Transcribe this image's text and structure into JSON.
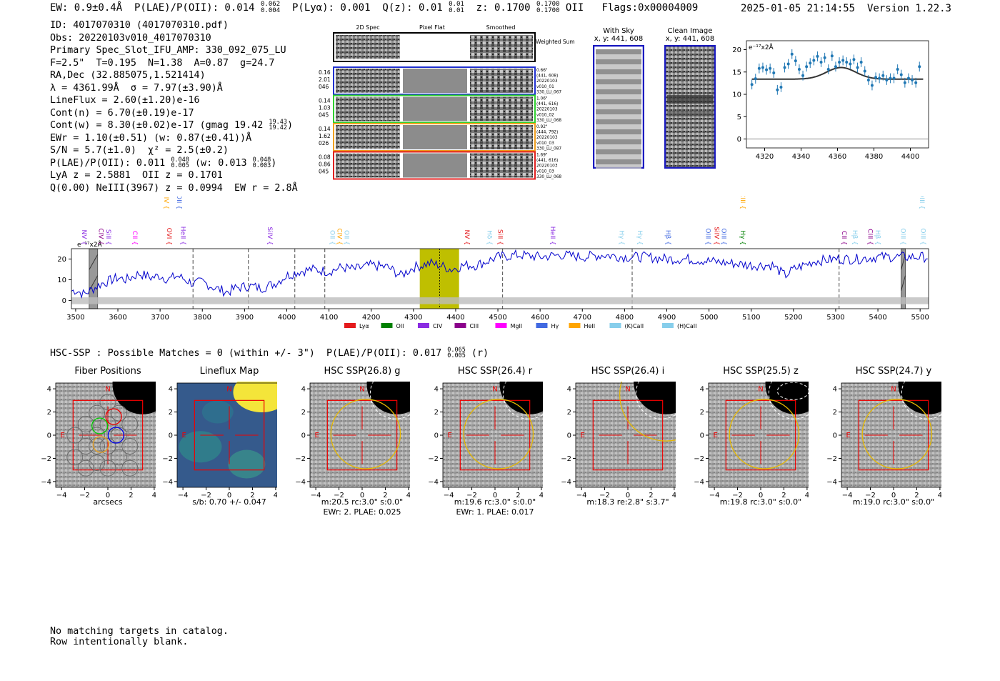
{
  "header": {
    "summary": "EW: 0.9±0.4Å  P(LAE)/P(OII): 0.014 ",
    "summary_plae_sup": "0.062",
    "summary_plae_sub": "0.004",
    "summary_plya": "  P(Lyα): 0.001  Q(z): 0.01 ",
    "summary_q_sup": "0.01",
    "summary_q_sub": "0.01",
    "summary_z": "  z: 0.1700 ",
    "summary_z_sup": "0.1700",
    "summary_z_sub": "0.1700",
    "summary_tail": " OII   Flags:0x00004009",
    "timestamp": "2025-01-05 21:14:55",
    "version": "Version 1.22.3"
  },
  "info": {
    "id": "ID: 4017070310 (4017070310.pdf)",
    "obs": "Obs: 20220103v010_4017070310",
    "primary": "Primary Spec_Slot_IFU_AMP: 330_092_075_LU",
    "params": "F=2.5\"  T=0.195  N=1.38  A=0.87  g=24.7",
    "radec": "RA,Dec (32.885075,1.521414)",
    "lambda": "λ = 4361.99Å  σ = 7.97(±3.90)Å",
    "lineflux": "LineFlux = 2.60(±1.20)e-16",
    "contn": "Cont(n) = 6.70(±0.19)e-17",
    "contw": "Cont(w) = 8.30(±0.02)e-17 (gmag 19.42 ",
    "contw_sup": "19.43",
    "contw_sub": "19.42",
    "ewr": "EWr = 1.10(±0.51) (w: 0.87(±0.41))Å",
    "sn": "S/N = 5.7(±1.0)  χ² = 2.5(±0.2)",
    "plae": "P(LAE)/P(OII): 0.011 ",
    "plae_sup": "0.048",
    "plae_sub": "0.005",
    "plae_w": " (w: 0.013 ",
    "plae_w_sup": "0.048",
    "plae_w_sub": "0.003",
    "lya": "LyA z = 2.5881  OII z = 0.1701",
    "q": "Q(0.00) NeIII(3967) z = 0.0994  EW r = 2.8Å"
  },
  "cutouts": {
    "col_labels": [
      "2D Spec",
      "Pixel Flat",
      "Smoothed"
    ],
    "weighted_label": "Weighted Sum",
    "rows": [
      {
        "left": [
          "0.16",
          "2.01",
          "046"
        ],
        "right": [
          "0.66\"",
          "(441, 608)",
          "20220103",
          "v010_01",
          "330_LU_067"
        ],
        "color": "#2030d0"
      },
      {
        "left": [
          "0.14",
          "1.03",
          "045"
        ],
        "right": [
          "1.06\"",
          "(441, 616)",
          "20220103",
          "v010_02",
          "330_LU_068"
        ],
        "color": "#30d030"
      },
      {
        "left": [
          "0.14",
          "1.62",
          "026"
        ],
        "right": [
          "0.92\"",
          "(444, 792)",
          "20220103",
          "v010_03",
          "330_LU_087"
        ],
        "color": "#f0a020"
      },
      {
        "left": [
          "0.08",
          "0.86",
          "045"
        ],
        "right": [
          "1.69\"",
          "(441, 616)",
          "20220103",
          "v010_03",
          "330_LU_068"
        ],
        "color": "#e02020"
      }
    ],
    "with_sky": "With Sky",
    "with_sky_xy": "x, y: 441, 608",
    "clean": "Clean Image",
    "clean_xy": "x, y: 441, 608"
  },
  "chart_data": [
    {
      "type": "scatter",
      "ylabel_unit": "e⁻¹⁷x2Å",
      "xlim": [
        4310,
        4410
      ],
      "ylim": [
        -2,
        22
      ],
      "xticks": [
        4320,
        4340,
        4360,
        4380,
        4400
      ],
      "yticks": [
        0,
        5,
        10,
        15,
        20
      ],
      "points": [
        {
          "x": 4313,
          "y": 12.2
        },
        {
          "x": 4315,
          "y": 13.5
        },
        {
          "x": 4317,
          "y": 15.8
        },
        {
          "x": 4319,
          "y": 16.0
        },
        {
          "x": 4321,
          "y": 15.5
        },
        {
          "x": 4323,
          "y": 15.8
        },
        {
          "x": 4325,
          "y": 14.8
        },
        {
          "x": 4327,
          "y": 11.0
        },
        {
          "x": 4329,
          "y": 11.6
        },
        {
          "x": 4331,
          "y": 16.0
        },
        {
          "x": 4333,
          "y": 16.8
        },
        {
          "x": 4335,
          "y": 19.0
        },
        {
          "x": 4337,
          "y": 17.5
        },
        {
          "x": 4339,
          "y": 15.6
        },
        {
          "x": 4341,
          "y": 14.2
        },
        {
          "x": 4343,
          "y": 16.2
        },
        {
          "x": 4345,
          "y": 17.0
        },
        {
          "x": 4347,
          "y": 17.6
        },
        {
          "x": 4349,
          "y": 18.5
        },
        {
          "x": 4351,
          "y": 17.2
        },
        {
          "x": 4353,
          "y": 18.2
        },
        {
          "x": 4355,
          "y": 15.6
        },
        {
          "x": 4357,
          "y": 18.6
        },
        {
          "x": 4359,
          "y": 16.2
        },
        {
          "x": 4361,
          "y": 17.2
        },
        {
          "x": 4363,
          "y": 17.6
        },
        {
          "x": 4365,
          "y": 17.2
        },
        {
          "x": 4367,
          "y": 16.8
        },
        {
          "x": 4369,
          "y": 17.8
        },
        {
          "x": 4371,
          "y": 16.0
        },
        {
          "x": 4373,
          "y": 17.2
        },
        {
          "x": 4375,
          "y": 15.2
        },
        {
          "x": 4377,
          "y": 13.2
        },
        {
          "x": 4379,
          "y": 12.0
        },
        {
          "x": 4381,
          "y": 13.8
        },
        {
          "x": 4383,
          "y": 13.6
        },
        {
          "x": 4385,
          "y": 14.2
        },
        {
          "x": 4387,
          "y": 13.2
        },
        {
          "x": 4389,
          "y": 13.6
        },
        {
          "x": 4391,
          "y": 13.6
        },
        {
          "x": 4393,
          "y": 15.6
        },
        {
          "x": 4395,
          "y": 14.4
        },
        {
          "x": 4397,
          "y": 12.6
        },
        {
          "x": 4399,
          "y": 13.6
        },
        {
          "x": 4401,
          "y": 13.2
        },
        {
          "x": 4403,
          "y": 12.6
        },
        {
          "x": 4405,
          "y": 16.2
        }
      ],
      "fit": {
        "center": 4362,
        "sigma": 7.97,
        "continuum": 13.4,
        "amplitude": 2.6
      }
    },
    {
      "type": "line",
      "ylabel_unit": "e⁻¹⁷x2Å",
      "xlim": [
        3490,
        5520
      ],
      "ylim": [
        -4,
        25
      ],
      "xticks": [
        3500,
        3600,
        3700,
        3800,
        3900,
        4000,
        4100,
        4200,
        4300,
        4400,
        4500,
        4600,
        4700,
        4800,
        4900,
        5000,
        5100,
        5200,
        5300,
        5400,
        5500
      ],
      "yticks": [
        0,
        10,
        20
      ],
      "highlight_band": [
        4315,
        4408
      ],
      "line_center": 4362,
      "masked_bands": [
        [
          3532,
          3552
        ],
        [
          5455,
          5465
        ]
      ],
      "dashed_lines": [
        3778,
        3909,
        4019,
        4090,
        4511,
        4818,
        5308
      ],
      "anchors": [
        [
          3490,
          4.5
        ],
        [
          3500,
          5
        ],
        [
          3520,
          3
        ],
        [
          3560,
          8
        ],
        [
          3600,
          11
        ],
        [
          3620,
          10
        ],
        [
          3650,
          13
        ],
        [
          3680,
          11
        ],
        [
          3700,
          12
        ],
        [
          3720,
          10
        ],
        [
          3740,
          12
        ],
        [
          3760,
          10
        ],
        [
          3780,
          8
        ],
        [
          3800,
          9
        ],
        [
          3830,
          6
        ],
        [
          3860,
          4
        ],
        [
          3880,
          6
        ],
        [
          3910,
          7
        ],
        [
          3940,
          6
        ],
        [
          3970,
          8
        ],
        [
          4000,
          12
        ],
        [
          4030,
          14
        ],
        [
          4060,
          15
        ],
        [
          4100,
          14
        ],
        [
          4130,
          16
        ],
        [
          4160,
          15
        ],
        [
          4200,
          17
        ],
        [
          4240,
          16
        ],
        [
          4270,
          12
        ],
        [
          4300,
          16
        ],
        [
          4340,
          18
        ],
        [
          4362,
          17
        ],
        [
          4390,
          15
        ],
        [
          4420,
          17
        ],
        [
          4450,
          17
        ],
        [
          4500,
          21
        ],
        [
          4550,
          22
        ],
        [
          4600,
          21
        ],
        [
          4650,
          22
        ],
        [
          4700,
          21
        ],
        [
          4750,
          22
        ],
        [
          4800,
          21
        ],
        [
          4850,
          21
        ],
        [
          4900,
          20
        ],
        [
          4950,
          20
        ],
        [
          5000,
          19
        ],
        [
          5050,
          18
        ],
        [
          5100,
          17
        ],
        [
          5150,
          17
        ],
        [
          5180,
          12
        ],
        [
          5200,
          15
        ],
        [
          5250,
          19
        ],
        [
          5300,
          20
        ],
        [
          5350,
          20
        ],
        [
          5400,
          21
        ],
        [
          5450,
          21
        ],
        [
          5500,
          21
        ],
        [
          5520,
          21
        ]
      ],
      "legend": [
        {
          "label": "Lyα",
          "color": "#e41a1c"
        },
        {
          "label": "OII",
          "color": "#008000"
        },
        {
          "label": "CIV",
          "color": "#8a2be2"
        },
        {
          "label": "CIII",
          "color": "#8b008b"
        },
        {
          "label": "MgII",
          "color": "#ff00ff"
        },
        {
          "label": "Hγ",
          "color": "#4169e1"
        },
        {
          "label": "HeII",
          "color": "#ffa500"
        },
        {
          "label": "(K)CaII",
          "color": "#87ceeb"
        },
        {
          "label": "(H)CaII",
          "color": "#87ceeb"
        }
      ],
      "line_markers": [
        {
          "label": "NV",
          "x": 3510,
          "color": "#8a2be2",
          "row": "low"
        },
        {
          "label": "CIV",
          "x": 3550,
          "color": "#8b008b",
          "row": "low"
        },
        {
          "label": "SiII",
          "x": 3568,
          "color": "#8a2be2",
          "row": "low"
        },
        {
          "label": "CII",
          "x": 3630,
          "color": "#ff00ff",
          "row": "low"
        },
        {
          "label": "SiIV",
          "x": 3705,
          "color": "#ffa500",
          "row": "high"
        },
        {
          "label": "OVI",
          "x": 3712,
          "color": "#e41a1c",
          "row": "low"
        },
        {
          "label": "OII",
          "x": 3735,
          "color": "#4169e1",
          "row": "high"
        },
        {
          "label": "HeII",
          "x": 3745,
          "color": "#8a2be2",
          "row": "low"
        },
        {
          "label": "SiIV",
          "x": 3950,
          "color": "#8a2be2",
          "row": "low"
        },
        {
          "label": "OII",
          "x": 4098,
          "color": "#87ceeb",
          "row": "low"
        },
        {
          "label": "CIV",
          "x": 4115,
          "color": "#ffa500",
          "row": "low"
        },
        {
          "label": "OII",
          "x": 4132,
          "color": "#87ceeb",
          "row": "low"
        },
        {
          "label": "NV",
          "x": 4417,
          "color": "#e41a1c",
          "row": "low"
        },
        {
          "label": "Hδ",
          "x": 4470,
          "color": "#87ceeb",
          "row": "low"
        },
        {
          "label": "SiII",
          "x": 4496,
          "color": "#e41a1c",
          "row": "low"
        },
        {
          "label": "HeII",
          "x": 4620,
          "color": "#8a2be2",
          "row": "low"
        },
        {
          "label": "Hγ",
          "x": 4783,
          "color": "#87ceeb",
          "row": "low"
        },
        {
          "label": "Hγ",
          "x": 4826,
          "color": "#87ceeb",
          "row": "low"
        },
        {
          "label": "Hβ",
          "x": 4893,
          "color": "#4169e1",
          "row": "low"
        },
        {
          "label": "OIII",
          "x": 4988,
          "color": "#4169e1",
          "row": "low"
        },
        {
          "label": "SiIV",
          "x": 5008,
          "color": "#e41a1c",
          "row": "low"
        },
        {
          "label": "OIII",
          "x": 5025,
          "color": "#4169e1",
          "row": "low"
        },
        {
          "label": "CIII",
          "x": 5070,
          "color": "#ffa500",
          "row": "high"
        },
        {
          "label": "Hγ",
          "x": 5070,
          "color": "#008000",
          "row": "low"
        },
        {
          "label": "CII",
          "x": 5310,
          "color": "#8b008b",
          "row": "low"
        },
        {
          "label": "Hβ",
          "x": 5336,
          "color": "#87ceeb",
          "row": "low"
        },
        {
          "label": "CIII",
          "x": 5372,
          "color": "#8b008b",
          "row": "low"
        },
        {
          "label": "Hβ",
          "x": 5390,
          "color": "#87ceeb",
          "row": "low"
        },
        {
          "label": "OIII",
          "x": 5450,
          "color": "#87ceeb",
          "row": "low"
        },
        {
          "label": "OIII",
          "x": 5495,
          "color": "#87ceeb",
          "row": "high"
        },
        {
          "label": "OIII",
          "x": 5497,
          "color": "#87ceeb",
          "row": "low"
        }
      ]
    }
  ],
  "hsc": {
    "title": "HSC-SSP : Possible Matches = 0 (within +/- 3\")  P(LAE)/P(OII): 0.017 ",
    "title_sup": "0.065",
    "title_sub": "0.005",
    "title_tail": " (r)",
    "panels": [
      {
        "title": "Fiber Positions",
        "sub1": "arcsecs",
        "sub2": ""
      },
      {
        "title": "Lineflux Map",
        "sub1": "s/b: 0.70 +/- 0.047",
        "sub2": ""
      },
      {
        "title": "HSC SSP(26.8) g",
        "sub1": "m:20.5 rc:3.0\"  s:0.0\"",
        "sub2": "EWr: 2. PLAE: 0.025"
      },
      {
        "title": "HSC SSP(26.4) r",
        "sub1": "m:19.6 rc:3.0\"  s:0.0\"",
        "sub2": "EWr: 1. PLAE: 0.017"
      },
      {
        "title": "HSC SSP(26.4) i",
        "sub1": "m:18.3  re:2.8\"  s:3.7\"",
        "sub2": ""
      },
      {
        "title": "HSC SSP(25.5) z",
        "sub1": "m:19.8 rc:3.0\"  s:0.0\"",
        "sub2": ""
      },
      {
        "title": "HSC SSP(24.7) y",
        "sub1": "m:19.0 rc:3.0\"  s:0.0\"",
        "sub2": ""
      }
    ],
    "axis_ticks": [
      "−4",
      "−2",
      "0",
      "2",
      "4"
    ],
    "north": "N",
    "east": "E"
  },
  "footer": {
    "line1": "No matching targets in catalog.",
    "line2": "Row intentionally blank."
  }
}
